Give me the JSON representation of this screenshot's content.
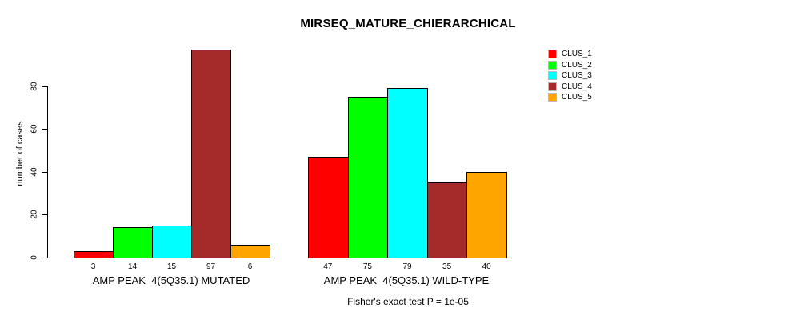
{
  "chart_data": {
    "type": "bar",
    "title": "MIRSEQ_MATURE_CHIERARCHICAL",
    "xlabel": "",
    "ylabel": "number of cases",
    "yticks": [
      0,
      20,
      40,
      60,
      80
    ],
    "ylim": [
      0,
      100
    ],
    "grid": false,
    "legend_position": "right",
    "series": [
      {
        "name": "CLUS_1",
        "color": "#ff0000"
      },
      {
        "name": "CLUS_2",
        "color": "#00ff00"
      },
      {
        "name": "CLUS_3",
        "color": "#00ffff"
      },
      {
        "name": "CLUS_4",
        "color": "#a52a2a"
      },
      {
        "name": "CLUS_5",
        "color": "#ffa500"
      }
    ],
    "groups": [
      {
        "label": "AMP PEAK  4(5Q35.1) MUTATED",
        "values": [
          3,
          14,
          15,
          97,
          6
        ]
      },
      {
        "label": "AMP PEAK  4(5Q35.1) WILD-TYPE",
        "values": [
          47,
          75,
          79,
          35,
          40
        ]
      }
    ],
    "annotation": "Fisher's exact test P = 1e-05"
  }
}
